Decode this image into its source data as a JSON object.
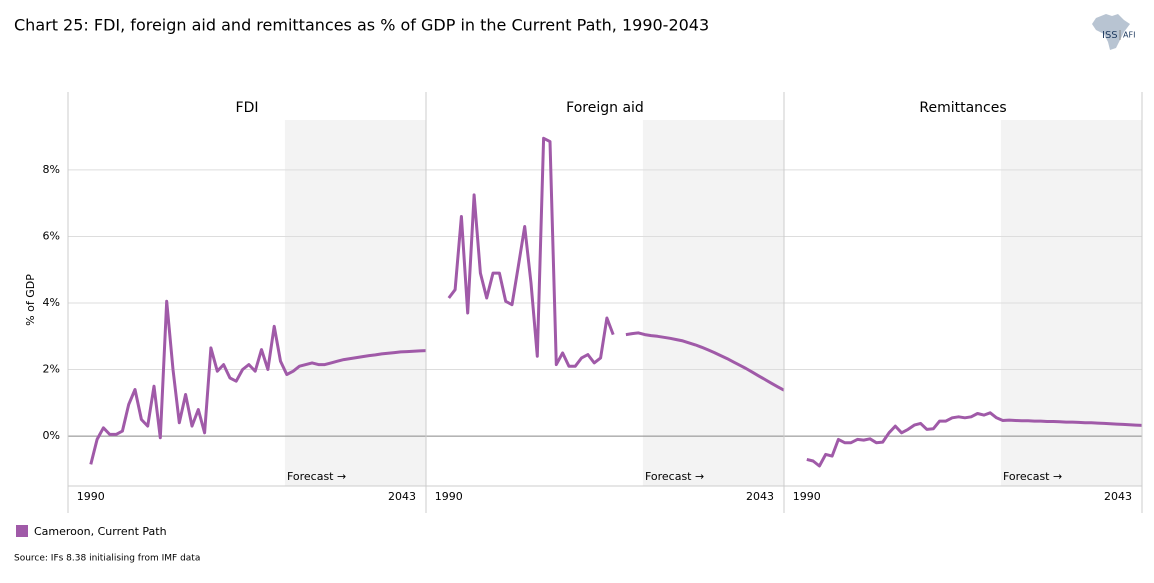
{
  "chart_data": {
    "type": "line",
    "title": "Chart 25: FDI, foreign aid and remittances as % of GDP in the Current Path, 1990-2043",
    "ylabel": "% of GDP",
    "annotation": "Forecast →",
    "source": "Source: IFs 8.38 initialising from IMF data",
    "logo": [
      "ISS",
      "AFI"
    ],
    "series_name": "Cameroon, Current Path",
    "color": "#a05aa8",
    "shade_color": "#f3f3f3",
    "forecast_region": [
      2020.7,
      2043
    ],
    "grid": true,
    "xlim": [
      1986.4,
      2043
    ],
    "xticks": [
      1990,
      2043
    ],
    "ylim": [
      -1.5,
      9.5
    ],
    "yticks": [
      {
        "value": 0,
        "label": "0%"
      },
      {
        "value": 2,
        "label": "2%"
      },
      {
        "value": 4,
        "label": "4%"
      },
      {
        "value": 6,
        "label": "6%"
      },
      {
        "value": 8,
        "label": "8%"
      }
    ],
    "x": [
      1990,
      1991,
      1992,
      1993,
      1994,
      1995,
      1996,
      1997,
      1998,
      1999,
      2000,
      2001,
      2002,
      2003,
      2004,
      2005,
      2006,
      2007,
      2008,
      2009,
      2010,
      2011,
      2012,
      2013,
      2014,
      2015,
      2016,
      2017,
      2018,
      2019,
      2020,
      2021,
      2022,
      2023,
      2024,
      2025,
      2026,
      2027,
      2028,
      2029,
      2030,
      2031,
      2032,
      2033,
      2034,
      2035,
      2036,
      2037,
      2038,
      2039,
      2040,
      2041,
      2042,
      2043
    ],
    "panels": [
      {
        "title": "FDI",
        "values": [
          -0.85,
          -0.1,
          0.25,
          0.05,
          0.05,
          0.15,
          0.95,
          1.4,
          0.5,
          0.3,
          1.5,
          -0.05,
          4.05,
          2.0,
          0.4,
          1.25,
          0.3,
          0.8,
          0.1,
          2.65,
          1.95,
          2.15,
          1.75,
          1.65,
          2.0,
          2.15,
          1.95,
          2.6,
          2.0,
          3.3,
          2.25,
          1.85,
          1.95,
          2.1,
          2.15,
          2.2,
          2.15,
          2.15,
          2.2,
          2.25,
          2.3,
          2.33,
          2.36,
          2.39,
          2.42,
          2.44,
          2.47,
          2.49,
          2.51,
          2.53,
          2.54,
          2.55,
          2.56,
          2.57
        ]
      },
      {
        "title": "Foreign aid",
        "values": [
          4.15,
          4.4,
          6.6,
          3.7,
          7.25,
          4.9,
          4.15,
          4.9,
          4.9,
          4.05,
          3.95,
          5.1,
          6.3,
          4.6,
          2.4,
          8.95,
          8.85,
          2.15,
          2.5,
          2.1,
          2.1,
          2.35,
          2.45,
          2.2,
          2.35,
          3.55,
          3.05,
          null,
          3.05,
          3.08,
          3.1,
          3.05,
          3.02,
          3.0,
          2.97,
          2.94,
          2.9,
          2.86,
          2.8,
          2.74,
          2.67,
          2.59,
          2.51,
          2.42,
          2.33,
          2.23,
          2.13,
          2.03,
          1.92,
          1.81,
          1.7,
          1.59,
          1.48,
          1.38
        ]
      },
      {
        "title": "Remittances",
        "values": [
          -0.7,
          -0.75,
          -0.9,
          -0.55,
          -0.6,
          -0.1,
          -0.2,
          -0.2,
          -0.1,
          -0.12,
          -0.08,
          -0.2,
          -0.18,
          0.1,
          0.3,
          0.1,
          0.2,
          0.33,
          0.38,
          0.2,
          0.22,
          0.45,
          0.45,
          0.55,
          0.58,
          0.55,
          0.58,
          0.68,
          0.63,
          0.7,
          0.55,
          0.47,
          0.48,
          0.47,
          0.46,
          0.46,
          0.45,
          0.45,
          0.44,
          0.44,
          0.43,
          0.42,
          0.42,
          0.41,
          0.4,
          0.4,
          0.39,
          0.38,
          0.37,
          0.36,
          0.35,
          0.34,
          0.33,
          0.32
        ]
      }
    ]
  }
}
